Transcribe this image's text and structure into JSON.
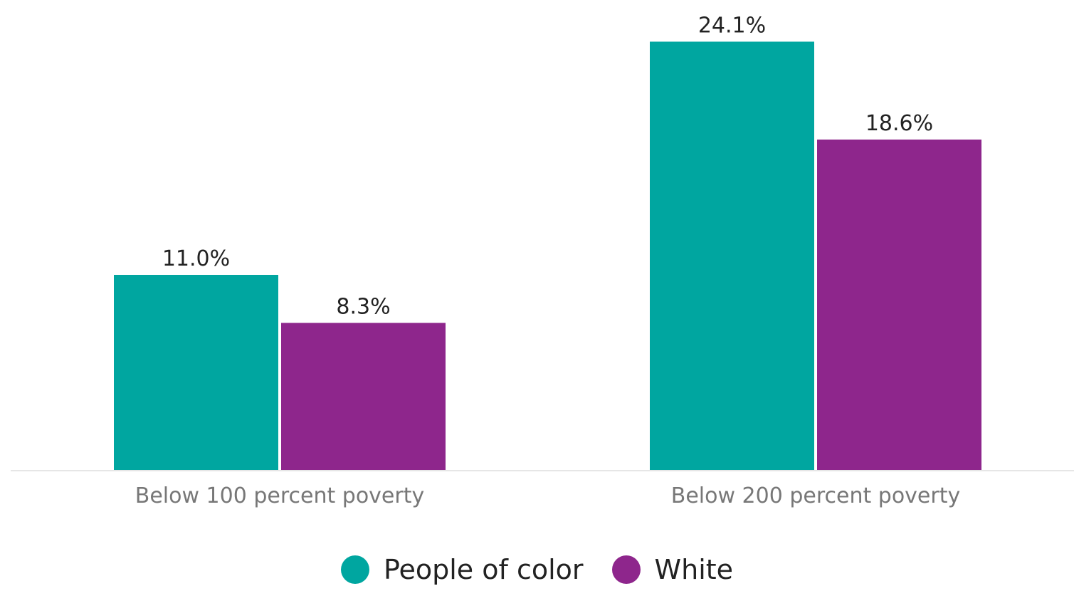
{
  "chart_data": {
    "type": "bar",
    "categories": [
      "Below 100 percent poverty",
      "Below 200 percent poverty"
    ],
    "series": [
      {
        "name": "People of color",
        "values": [
          11.0,
          24.1
        ],
        "labels": [
          "11.0%",
          "24.1%"
        ],
        "color": "#00a6a0"
      },
      {
        "name": "White",
        "values": [
          8.3,
          18.6
        ],
        "labels": [
          "8.3%",
          "18.6%"
        ],
        "color": "#8e268c"
      }
    ],
    "ylim": [
      0,
      25.6
    ],
    "grid": false,
    "legend_position": "bottom-center",
    "baseline_color": "#e6e6e6"
  }
}
